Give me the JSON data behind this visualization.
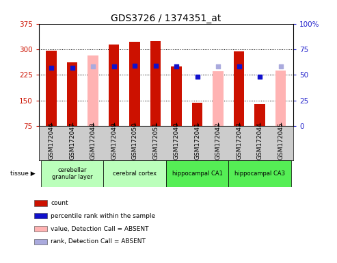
{
  "title": "GDS3726 / 1374351_at",
  "samples": [
    "GSM172046",
    "GSM172047",
    "GSM172048",
    "GSM172049",
    "GSM172050",
    "GSM172051",
    "GSM172040",
    "GSM172041",
    "GSM172042",
    "GSM172043",
    "GSM172044",
    "GSM172045"
  ],
  "count_values": [
    296,
    262,
    null,
    315,
    322,
    325,
    250,
    143,
    null,
    293,
    140,
    null
  ],
  "count_absent": [
    null,
    null,
    282,
    null,
    null,
    null,
    null,
    null,
    235,
    null,
    null,
    237
  ],
  "rank_values": [
    57,
    57,
    null,
    58,
    59,
    59,
    58,
    48,
    null,
    58,
    48,
    null
  ],
  "rank_absent": [
    null,
    null,
    58,
    null,
    null,
    null,
    null,
    null,
    58,
    null,
    null,
    58
  ],
  "tissues": [
    {
      "label": "cerebellar\ngranular layer",
      "start": 0,
      "end": 3,
      "color": "#bbffbb"
    },
    {
      "label": "cerebral cortex",
      "start": 3,
      "end": 6,
      "color": "#bbffbb"
    },
    {
      "label": "hippocampal CA1",
      "start": 6,
      "end": 9,
      "color": "#55ee55"
    },
    {
      "label": "hippocampal CA3",
      "start": 9,
      "end": 12,
      "color": "#55ee55"
    }
  ],
  "ylim_left": [
    75,
    375
  ],
  "ylim_right": [
    0,
    100
  ],
  "count_color": "#cc1100",
  "count_absent_color": "#ffb3b3",
  "rank_color": "#1111cc",
  "rank_absent_color": "#aaaadd",
  "bg_color": "#ffffff",
  "left_tick_color": "#cc1100",
  "right_tick_color": "#2222cc",
  "xtick_bg": "#cccccc",
  "legend_items": [
    {
      "label": "count",
      "color": "#cc1100"
    },
    {
      "label": "percentile rank within the sample",
      "color": "#1111cc"
    },
    {
      "label": "value, Detection Call = ABSENT",
      "color": "#ffb3b3"
    },
    {
      "label": "rank, Detection Call = ABSENT",
      "color": "#aaaadd"
    }
  ]
}
